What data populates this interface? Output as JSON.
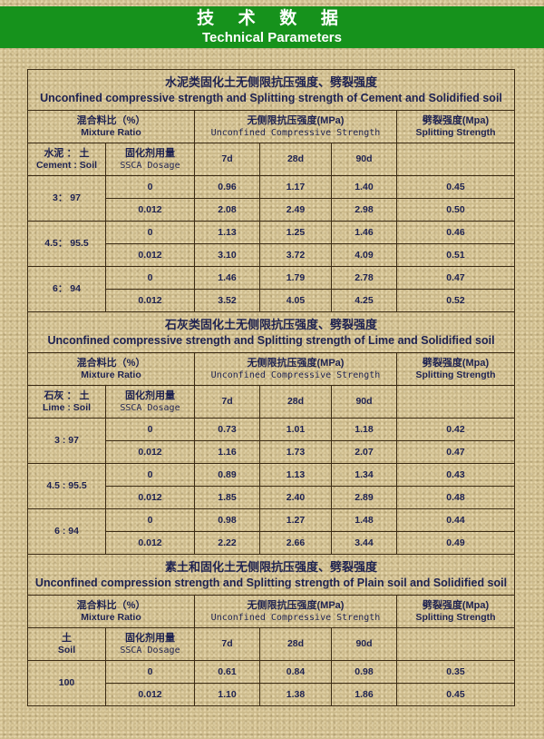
{
  "header": {
    "title_zh": "技 术 数 据",
    "title_en": "Technical Parameters"
  },
  "colors": {
    "banner": "#16921c",
    "text": "#1d2150",
    "border": "#3a2a14"
  },
  "common": {
    "mixture_zh": "混合料比（%）",
    "mixture_en": "Mixture Ratio",
    "ucs_zh": "无侧限抗压强度(MPa)",
    "ucs_en": "Unconfined Compressive Strength",
    "split_zh": "劈裂强度(Mpa)",
    "split_en": "Splitting Strength",
    "dosage_zh": "固化剂用量",
    "dosage_en": "SSCA Dosage",
    "d7": "7d",
    "d28": "28d",
    "d90": "90d"
  },
  "sections": [
    {
      "title_zh": "水泥类固化土无侧限抗压强度、劈裂强度",
      "title_en": "Unconfined compressive strength and Splitting strength of Cement and Solidified soil",
      "ratio_zh": "水泥 ： 土",
      "ratio_en": "Cement : Soil",
      "groups": [
        {
          "ratio": "3： 97",
          "rows": [
            {
              "dosage": "0",
              "d7": "0.96",
              "d28": "1.17",
              "d90": "1.40",
              "split": "0.45"
            },
            {
              "dosage": "0.012",
              "d7": "2.08",
              "d28": "2.49",
              "d90": "2.98",
              "split": "0.50"
            }
          ]
        },
        {
          "ratio": "4.5： 95.5",
          "rows": [
            {
              "dosage": "0",
              "d7": "1.13",
              "d28": "1.25",
              "d90": "1.46",
              "split": "0.46"
            },
            {
              "dosage": "0.012",
              "d7": "3.10",
              "d28": "3.72",
              "d90": "4.09",
              "split": "0.51"
            }
          ]
        },
        {
          "ratio": "6： 94",
          "rows": [
            {
              "dosage": "0",
              "d7": "1.46",
              "d28": "1.79",
              "d90": "2.78",
              "split": "0.47"
            },
            {
              "dosage": "0.012",
              "d7": "3.52",
              "d28": "4.05",
              "d90": "4.25",
              "split": "0.52"
            }
          ]
        }
      ]
    },
    {
      "title_zh": "石灰类固化土无侧限抗压强度、劈裂强度",
      "title_en": "Unconfined compressive strength and Splitting strength of Lime and Solidified soil",
      "ratio_zh": "石灰 ： 土",
      "ratio_en": "Lime : Soil",
      "groups": [
        {
          "ratio": "3 : 97",
          "rows": [
            {
              "dosage": "0",
              "d7": "0.73",
              "d28": "1.01",
              "d90": "1.18",
              "split": "0.42"
            },
            {
              "dosage": "0.012",
              "d7": "1.16",
              "d28": "1.73",
              "d90": "2.07",
              "split": "0.47"
            }
          ]
        },
        {
          "ratio": "4.5 : 95.5",
          "rows": [
            {
              "dosage": "0",
              "d7": "0.89",
              "d28": "1.13",
              "d90": "1.34",
              "split": "0.43"
            },
            {
              "dosage": "0.012",
              "d7": "1.85",
              "d28": "2.40",
              "d90": "2.89",
              "split": "0.48"
            }
          ]
        },
        {
          "ratio": "6 : 94",
          "rows": [
            {
              "dosage": "0",
              "d7": "0.98",
              "d28": "1.27",
              "d90": "1.48",
              "split": "0.44"
            },
            {
              "dosage": "0.012",
              "d7": "2.22",
              "d28": "2.66",
              "d90": "3.44",
              "split": "0.49"
            }
          ]
        }
      ]
    },
    {
      "title_zh": "素土和固化土无侧限抗压强度、劈裂强度",
      "title_en": "Unconfined compression strength and Splitting strength of Plain soil and Solidified soil",
      "ratio_zh": "土",
      "ratio_en": "Soil",
      "groups": [
        {
          "ratio": "100",
          "rows": [
            {
              "dosage": "0",
              "d7": "0.61",
              "d28": "0.84",
              "d90": "0.98",
              "split": "0.35"
            },
            {
              "dosage": "0.012",
              "d7": "1.10",
              "d28": "1.38",
              "d90": "1.86",
              "split": "0.45"
            }
          ]
        }
      ]
    }
  ]
}
